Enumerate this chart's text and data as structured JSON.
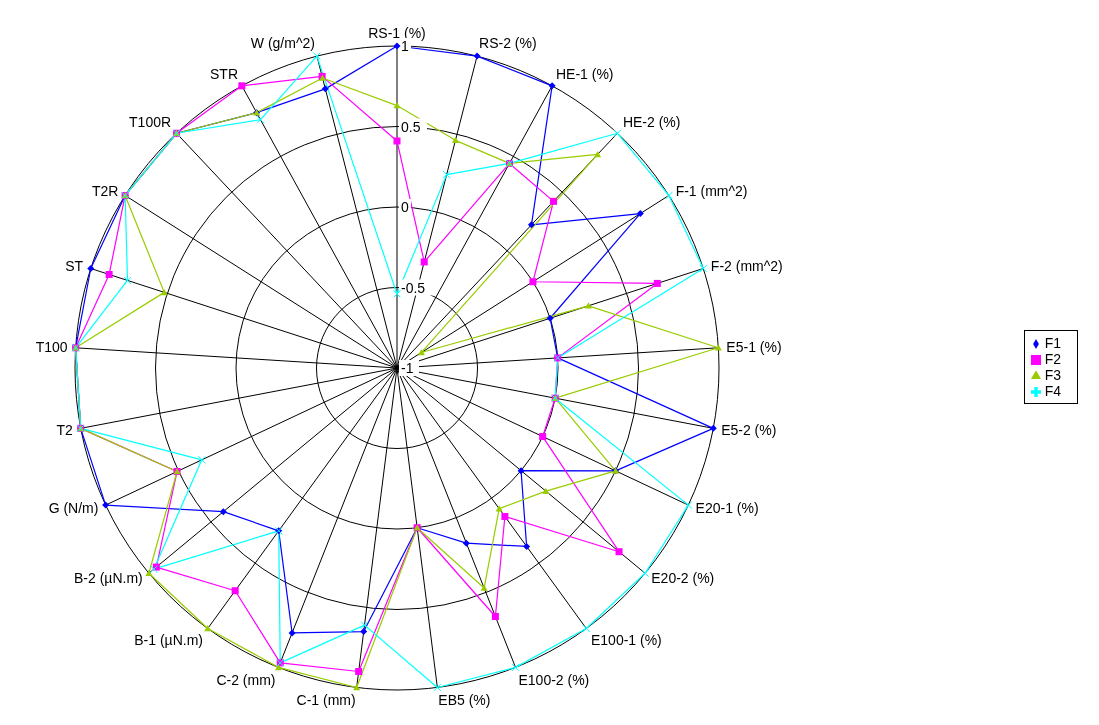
{
  "chart_data": {
    "type": "radar",
    "categories": [
      "RS-1 (%)",
      "RS-2 (%)",
      "HE-1 (%)",
      "HE-2 (%)",
      "F-1 (mm^2)",
      "F-2 (mm^2)",
      "E5-1 (%)",
      "E5-2 (%)",
      "E20-1 (%)",
      "E20-2 (%)",
      "E100-1 (%)",
      "E100-2 (%)",
      "EB5 (%)",
      "C-1 (mm)",
      "C-2 (mm)",
      "B-1 (µN.m)",
      "B-2 (µN.m)",
      "G (N/m)",
      "T2",
      "T100",
      "ST",
      "T2R",
      "T100R",
      "STR",
      "W (g/m^2)"
    ],
    "series": [
      {
        "name": "F1",
        "color": "#0000ff",
        "marker": "diamond",
        "values": [
          1,
          1,
          1,
          0.22,
          0.79,
          0,
          0,
          1,
          0.5,
          0,
          0.37,
          0.17,
          0,
          0.65,
          0.77,
          0.25,
          0.4,
          1,
          1,
          1,
          1,
          1,
          1,
          0.81,
          0.79
        ]
      },
      {
        "name": "F2",
        "color": "#ff00ff",
        "marker": "square",
        "values": [
          0.41,
          -0.32,
          0.45,
          0.42,
          0,
          0.7,
          0,
          0,
          0,
          0.79,
          0.14,
          0.66,
          0,
          0.9,
          0.97,
          0.71,
          0.94,
          0.51,
          1,
          1,
          0.88,
          1,
          1,
          1,
          0.87
        ]
      },
      {
        "name": "F3",
        "color": "#99cc00",
        "marker": "triangle",
        "values": [
          0.63,
          0.46,
          0.45,
          0.82,
          -0.82,
          0.25,
          1,
          0,
          0.5,
          0.2,
          0.08,
          0.47,
          0,
          1,
          1,
          1,
          1,
          0.51,
          1,
          1,
          0.52,
          1,
          1,
          0.81,
          0.86
        ]
      },
      {
        "name": "F4",
        "color": "#00ffff",
        "marker": "cross",
        "values": [
          -0.54,
          0.24,
          0.45,
          1,
          1,
          1,
          0,
          0,
          1,
          1,
          1,
          1,
          1,
          0.61,
          0.97,
          0.25,
          0.96,
          0.34,
          1,
          1,
          0.76,
          1,
          1,
          0.76,
          1
        ]
      }
    ],
    "ylim": [
      -1,
      1
    ],
    "yticks": [
      -1,
      -0.5,
      0,
      0.5,
      1
    ],
    "grid": true,
    "legend": "right"
  }
}
